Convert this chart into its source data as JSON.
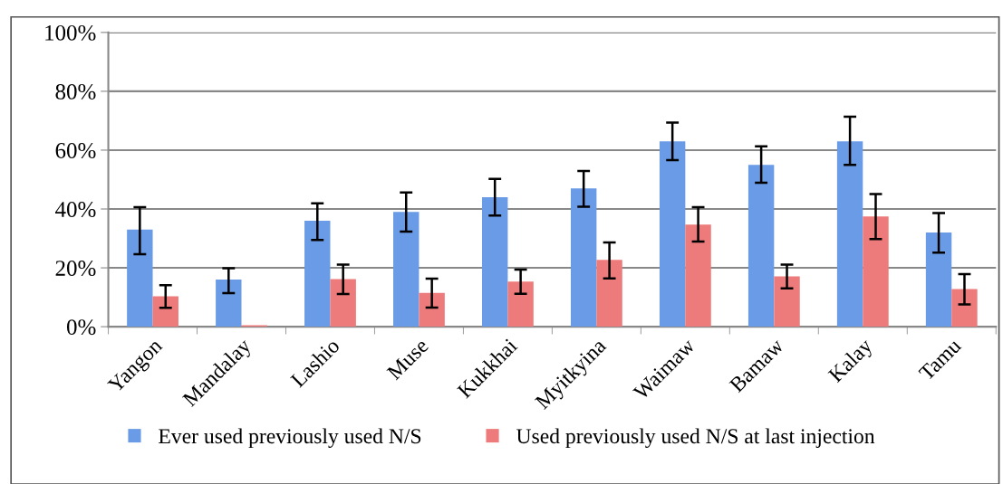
{
  "chart_data": {
    "type": "bar",
    "categories": [
      "Yangon",
      "Mandalay",
      "Lashio",
      "Muse",
      "Kukkhai",
      "Myitkyina",
      "Waimaw",
      "Bamaw",
      "Kalay",
      "Tamu"
    ],
    "series": [
      {
        "name": "Ever used previously used N/S",
        "color": "#6a9be6",
        "values": [
          33,
          16,
          36,
          39,
          44,
          47,
          63,
          55,
          63,
          32
        ],
        "errors": [
          [
            24.6,
            40.6
          ],
          [
            11.4,
            19.9
          ],
          [
            29.5,
            41.9
          ],
          [
            32.3,
            45.6
          ],
          [
            37.8,
            50.2
          ],
          [
            40.8,
            52.9
          ],
          [
            56.6,
            69.4
          ],
          [
            48.9,
            61.3
          ],
          [
            55,
            71.4
          ],
          [
            25.2,
            38.6
          ]
        ]
      },
      {
        "name": "Used previously used N/S at last injection",
        "color": "#ee7b7b",
        "values": [
          10.3,
          0.5,
          16.2,
          11.5,
          15.3,
          22.7,
          34.7,
          17.1,
          37.5,
          12.8
        ],
        "errors": [
          [
            6.4,
            14.1
          ],
          null,
          [
            11.1,
            21.1
          ],
          [
            6.5,
            16.3
          ],
          [
            11.2,
            19.4
          ],
          [
            16.4,
            28.6
          ],
          [
            28.9,
            40.6
          ],
          [
            13,
            21.1
          ],
          [
            29.8,
            45.1
          ],
          [
            7.6,
            17.9
          ]
        ]
      }
    ],
    "ylim": [
      0,
      100
    ],
    "yticks": [
      {
        "value": 0,
        "label": "0%"
      },
      {
        "value": 20,
        "label": "20%"
      },
      {
        "value": 40,
        "label": "40%"
      },
      {
        "value": 60,
        "label": "60%"
      },
      {
        "value": 80,
        "label": "80%"
      },
      {
        "value": 100,
        "label": "100%"
      }
    ],
    "grid": "y",
    "legend": "bottom"
  }
}
